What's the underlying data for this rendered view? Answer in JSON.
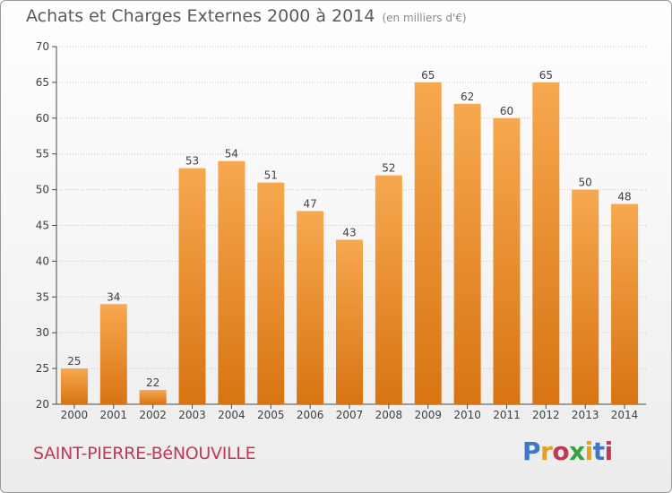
{
  "title": "Achats et Charges Externes 2000 à 2014",
  "subtitle": "(en milliers d'€)",
  "city": "SAINT-PIERRE-BéNOUVILLE",
  "logo": {
    "text": "Proxiti",
    "colors": [
      "#3a78c8",
      "#e8a020",
      "#c0395a",
      "#3aa040",
      "#e8a020",
      "#3a78c8",
      "#c0395a"
    ]
  },
  "colors": {
    "bar_light": "#f7a84f",
    "bar_dark": "#d87412",
    "axis": "#4a4a4a",
    "grid": "#c8c8c8"
  },
  "chart_data": {
    "type": "bar",
    "title": "Achats et Charges Externes 2000 à 2014",
    "xlabel": "",
    "ylabel": "",
    "categories": [
      "2000",
      "2001",
      "2002",
      "2003",
      "2004",
      "2005",
      "2006",
      "2007",
      "2008",
      "2009",
      "2010",
      "2011",
      "2012",
      "2013",
      "2014"
    ],
    "values": [
      25,
      34,
      22,
      53,
      54,
      51,
      47,
      43,
      52,
      65,
      62,
      60,
      65,
      50,
      48
    ],
    "ylim": [
      20,
      70
    ],
    "yticks": [
      20,
      25,
      30,
      35,
      40,
      45,
      50,
      55,
      60,
      65,
      70
    ],
    "grid": true,
    "data_labels": true
  }
}
